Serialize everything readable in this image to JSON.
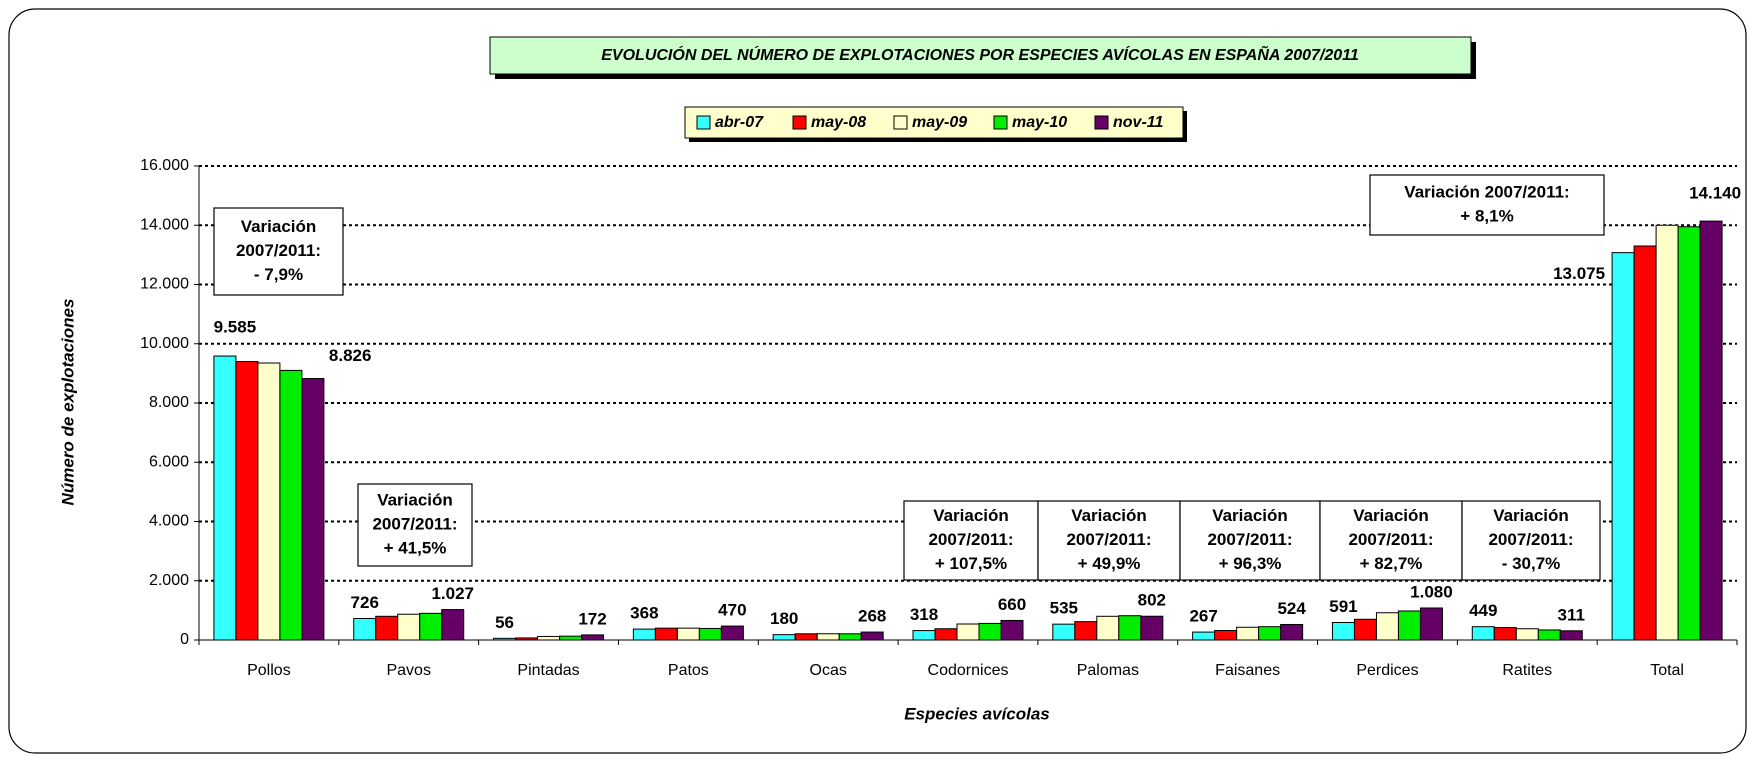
{
  "chart_data": {
    "type": "bar",
    "title": "EVOLUCIÓN DEL NÚMERO DE EXPLOTACIONES POR ESPECIES AVÍCOLAS EN ESPAÑA 2007/2011",
    "x_label": "Especies avícolas",
    "y_label": "Número de explotaciones",
    "categories": [
      "Pollos",
      "Pavos",
      "Pintadas",
      "Patos",
      "Ocas",
      "Codornices",
      "Palomas",
      "Faisanes",
      "Perdices",
      "Ratites",
      "Total"
    ],
    "series": [
      {
        "name": "abr-07",
        "color": "#33ffff",
        "values": [
          9585,
          726,
          56,
          368,
          180,
          318,
          535,
          267,
          591,
          449,
          13075
        ],
        "value_labels": [
          "9.585",
          "726",
          "56",
          "368",
          "180",
          "318",
          "535",
          "267",
          "591",
          "449",
          "13.075"
        ]
      },
      {
        "name": "may-08",
        "color": "#ff0000",
        "values": [
          9400,
          800,
          70,
          400,
          210,
          380,
          620,
          320,
          700,
          420,
          13300
        ]
      },
      {
        "name": "may-09",
        "color": "#ffffcc",
        "values": [
          9350,
          870,
          120,
          400,
          210,
          540,
          800,
          430,
          920,
          380,
          14000
        ]
      },
      {
        "name": "may-10",
        "color": "#00ee00",
        "values": [
          9100,
          900,
          130,
          390,
          210,
          560,
          820,
          450,
          980,
          340,
          13950
        ]
      },
      {
        "name": "nov-11",
        "color": "#660066",
        "values": [
          8826,
          1027,
          172,
          470,
          268,
          660,
          802,
          524,
          1080,
          311,
          14140
        ],
        "value_labels": [
          "8.826",
          "1.027",
          "172",
          "470",
          "268",
          "660",
          "802",
          "524",
          "1.080",
          "311",
          "14.140"
        ]
      }
    ],
    "ylim": [
      0,
      16000
    ],
    "yticks": [
      0,
      {
        "value": 2000,
        "label": "2.000"
      },
      {
        "value": 4000,
        "label": "4.000"
      },
      {
        "value": 6000,
        "label": "6.000"
      },
      {
        "value": 8000,
        "label": "8.000"
      },
      {
        "value": 10000,
        "label": "10.000"
      },
      {
        "value": 12000,
        "label": "12.000"
      },
      {
        "value": 14000,
        "label": "14.000"
      },
      {
        "value": 16000,
        "label": "16.000"
      }
    ],
    "grid": true,
    "legend": "top",
    "annotations": [
      {
        "lines": [
          "Variación",
          "2007/2011:",
          "- 7,9%"
        ]
      },
      {
        "lines": [
          "Variación",
          "2007/2011:",
          "+ 41,5%"
        ]
      },
      {
        "lines": [
          "Variación",
          "2007/2011:",
          "+ 107,5%"
        ]
      },
      {
        "lines": [
          "Variación",
          "2007/2011:",
          "+ 49,9%"
        ]
      },
      {
        "lines": [
          "Variación",
          "2007/2011:",
          "+ 96,3%"
        ]
      },
      {
        "lines": [
          "Variación",
          "2007/2011:",
          "+ 82,7%"
        ]
      },
      {
        "lines": [
          "Variación",
          "2007/2011:",
          "- 30,7%"
        ]
      },
      {
        "lines": [
          "Variación 2007/2011:",
          "+ 8,1%"
        ]
      }
    ]
  }
}
